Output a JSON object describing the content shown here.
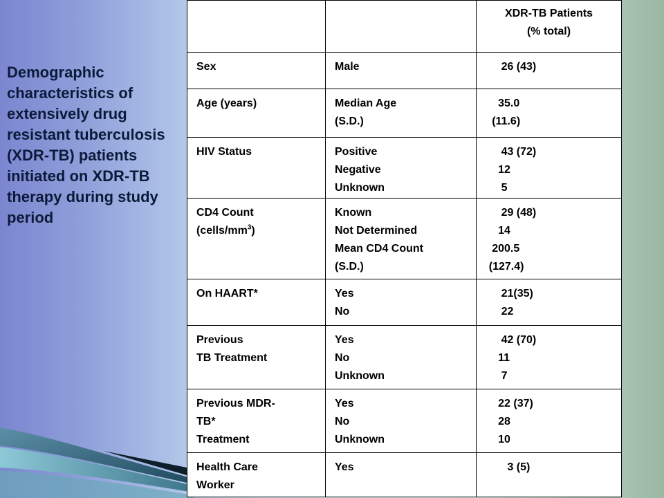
{
  "slide": {
    "title": "Demographic characteristics of extensively drug resistant tuberculosis (XDR-TB) patients initiated on XDR-TB therapy during study period"
  },
  "table": {
    "header": {
      "col1": "",
      "col2": "",
      "col3": "XDR-TB Patients\n(% total)"
    },
    "rows": [
      {
        "c1": "Sex",
        "c2": "Male",
        "c3": "        26 (43)"
      },
      {
        "c1": "Age (years)",
        "c2": "Median Age\n(S.D.)",
        "c3": "       35.0\n     (11.6)"
      },
      {
        "c1": "HIV Status",
        "c2": "Positive\nNegative\nUnknown",
        "c3": "        43 (72)\n       12\n        5"
      },
      {
        "c1_main": "CD4 Count",
        "c1_line2": "(cells/mm",
        "c1_sup": "3",
        "c1_end": ")",
        "c2": "Known\nNot Determined\nMean  CD4 Count\n(S.D.)",
        "c3": "        29 (48)\n       14\n     200.5\n    (127.4)"
      },
      {
        "c1": "On HAART*",
        "c2": "Yes\nNo",
        "c3": "        21(35)\n        22"
      },
      {
        "c1": "Previous\nTB Treatment",
        "c2": "Yes\nNo\nUnknown",
        "c3": "        42 (70)\n       11\n        7"
      },
      {
        "c1": "Previous MDR-\nTB*\nTreatment",
        "c2": "Yes\nNo\nUnknown",
        "c3": "       22 (37)\n       28\n       10"
      },
      {
        "c1": "Health Care\nWorker",
        "c2": "Yes",
        "c3": "          3 (5)"
      }
    ]
  }
}
